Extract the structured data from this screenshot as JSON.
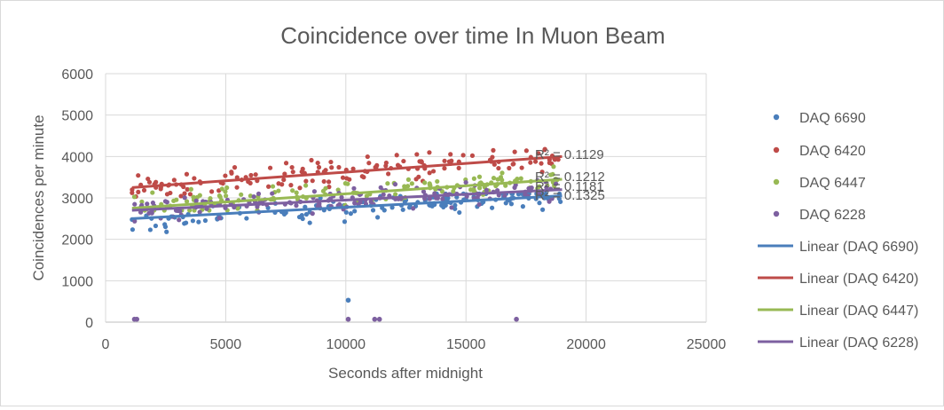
{
  "chart_data": {
    "type": "scatter",
    "title": "Coincidence over time In Muon Beam",
    "xlabel": "Seconds after midnight",
    "ylabel": "Coincidences per minute",
    "xlim": [
      0,
      25000
    ],
    "ylim": [
      0,
      6000
    ],
    "xticks": [
      "0",
      "5000",
      "10000",
      "15000",
      "20000",
      "25000"
    ],
    "yticks": [
      "0",
      "1000",
      "2000",
      "3000",
      "4000",
      "5000",
      "6000"
    ],
    "grid": true,
    "legend_position": "right",
    "series": [
      {
        "name": "DAQ 6690",
        "color": "#4a7ebb",
        "trend": [
          1100,
          2500,
          19000,
          3050
        ],
        "range": [
          2100,
          3100
        ],
        "outliers": [
          [
            10100,
            530
          ]
        ]
      },
      {
        "name": "DAQ 6420",
        "color": "#be4b48",
        "trend": [
          1100,
          3250,
          19000,
          4000
        ],
        "range": [
          3000,
          4800
        ],
        "outliers": []
      },
      {
        "name": "DAQ 6447",
        "color": "#98b954",
        "trend": [
          1100,
          2750,
          19000,
          3450
        ],
        "range": [
          2700,
          4200
        ],
        "outliers": []
      },
      {
        "name": "DAQ 6228",
        "color": "#7d60a0",
        "trend": [
          1100,
          2700,
          19000,
          3200
        ],
        "range": [
          2200,
          3500
        ],
        "outliers": [
          [
            1200,
            70
          ],
          [
            1300,
            70
          ],
          [
            10100,
            70
          ],
          [
            11200,
            70
          ],
          [
            11400,
            70
          ],
          [
            17100,
            70
          ]
        ]
      }
    ],
    "trendlines": [
      {
        "name": "Linear (DAQ 6690)",
        "color": "#4a7ebb"
      },
      {
        "name": "Linear (DAQ 6420)",
        "color": "#be4b48"
      },
      {
        "name": "Linear (DAQ 6447)",
        "color": "#98b954"
      },
      {
        "name": "Linear (DAQ 6228)",
        "color": "#7d60a0"
      }
    ],
    "r2_labels": [
      "R² = 0.1129",
      "R² = 0.1212",
      "R² = 0.1181",
      "R² = 0.1325"
    ]
  }
}
